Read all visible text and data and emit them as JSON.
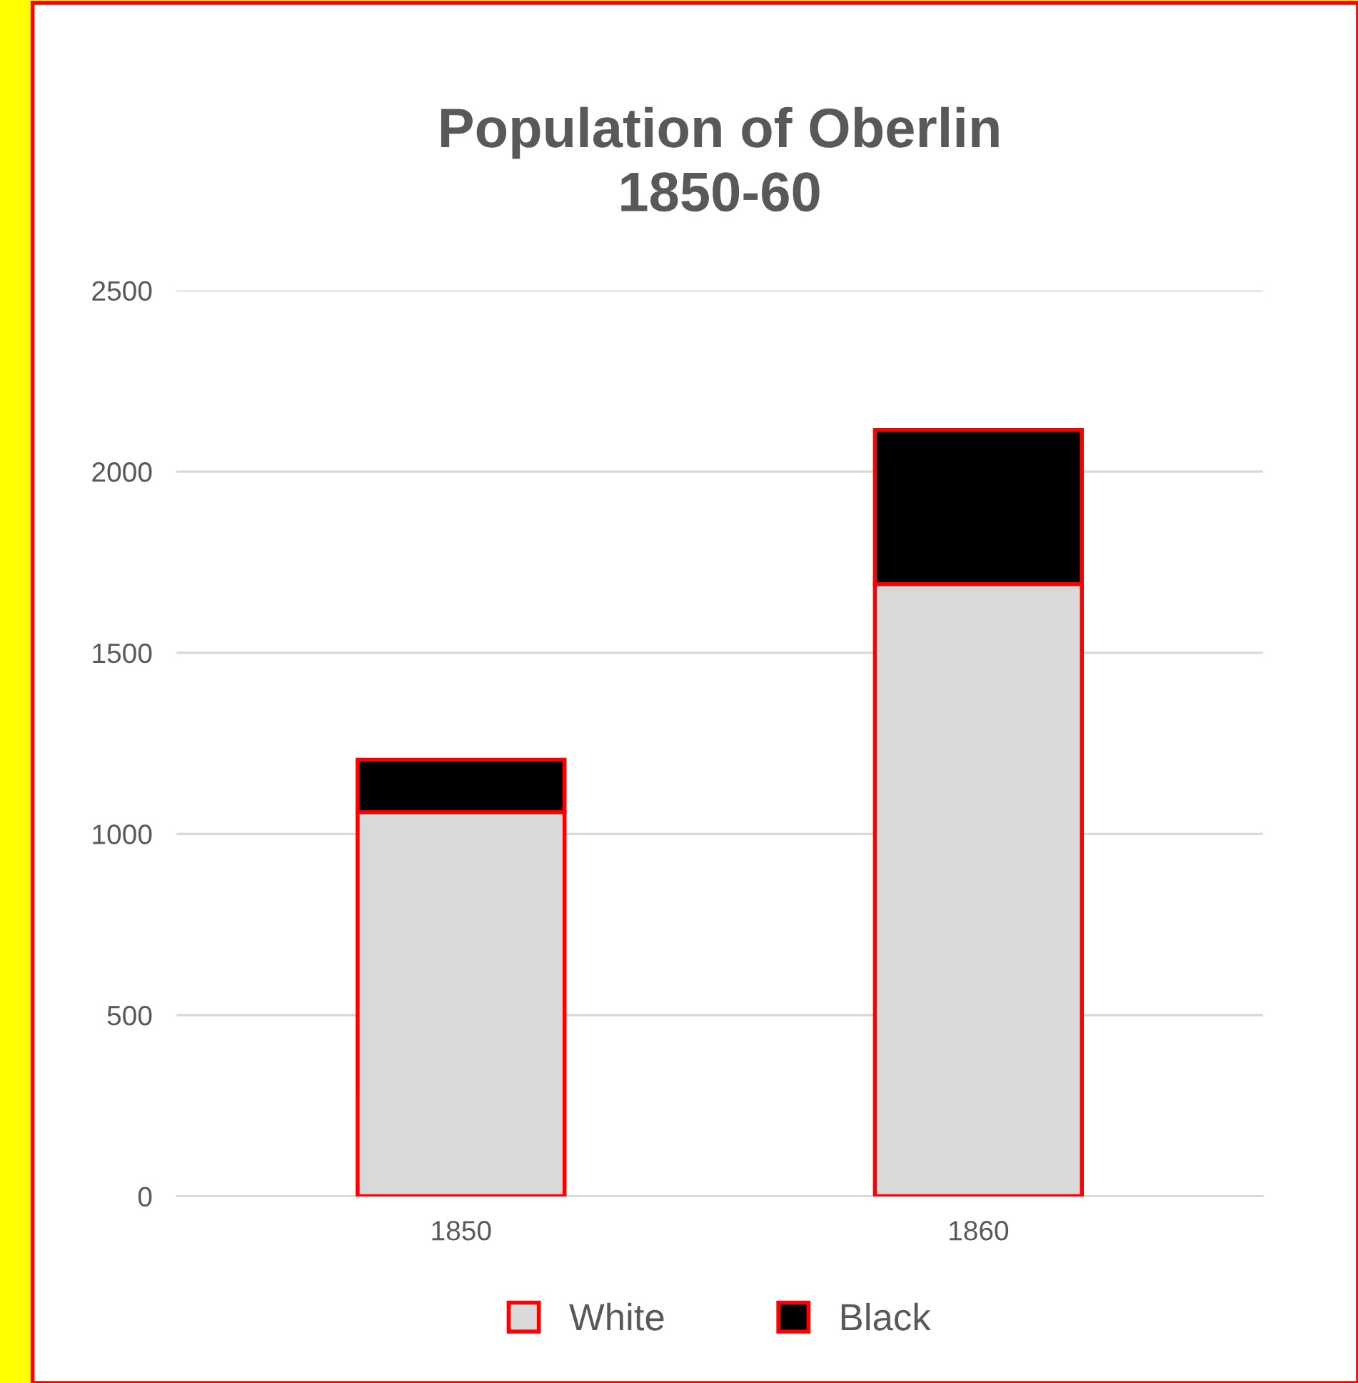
{
  "chart_data": {
    "type": "bar",
    "title": "Population of Oberlin\n1850-60",
    "categories": [
      "1850",
      "1860"
    ],
    "stacked": true,
    "series": [
      {
        "name": "White",
        "color": "#d9d9d9",
        "values": [
          1060,
          1690
        ]
      },
      {
        "name": "Black",
        "color": "#000000",
        "values": [
          145,
          425
        ]
      }
    ],
    "ylim": [
      0,
      2500
    ],
    "yticks": [
      0,
      500,
      1000,
      1500,
      2000,
      2500
    ],
    "grid": "y",
    "legend": "bottom"
  }
}
